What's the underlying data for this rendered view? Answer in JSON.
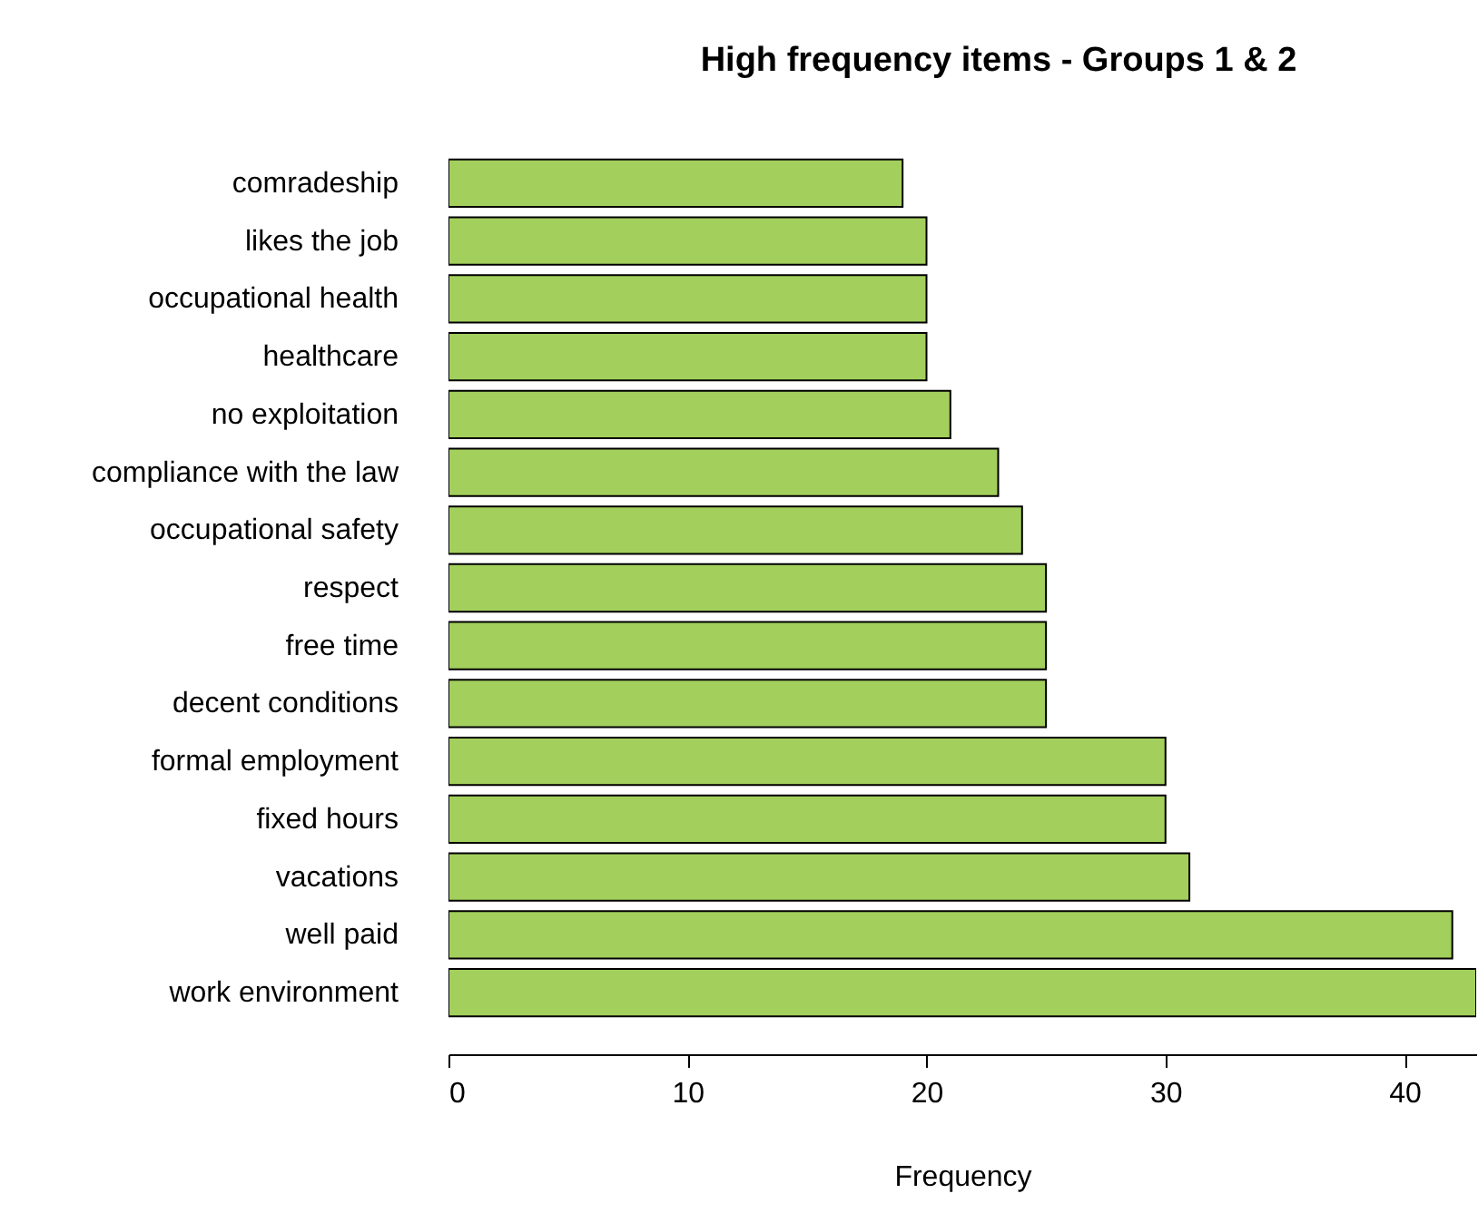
{
  "chart_data": {
    "type": "bar",
    "orientation": "horizontal",
    "title": "High frequency items - Groups 1 & 2",
    "xlabel": "Frequency",
    "categories": [
      "comradeship",
      "likes the job",
      "occupational health",
      "healthcare",
      "no exploitation",
      "compliance with the law",
      "occupational safety",
      "respect",
      "free time",
      "decent conditions",
      "formal employment",
      "fixed hours",
      "vacations",
      "well paid",
      "work environment"
    ],
    "values": [
      19,
      20,
      20,
      20,
      21,
      23,
      24,
      25,
      25,
      25,
      30,
      30,
      31,
      42,
      43
    ],
    "color": "#a3cf5c",
    "xlim": [
      0,
      43
    ],
    "xticks": [
      0,
      10,
      20,
      30,
      40
    ],
    "grid": false
  }
}
